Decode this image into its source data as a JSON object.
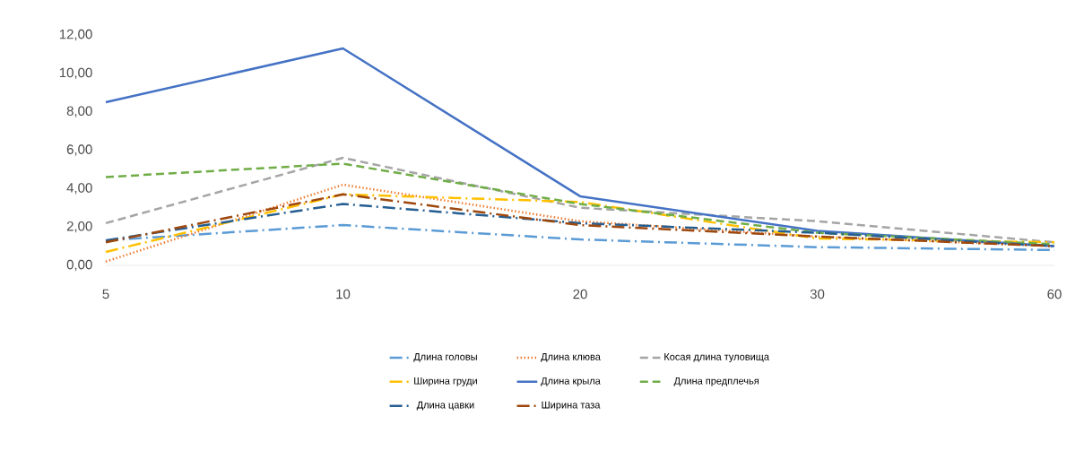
{
  "chart_data": {
    "type": "line",
    "categories": [
      "5",
      "10",
      "20",
      "30",
      "60"
    ],
    "series": [
      {
        "name": "Длина головы",
        "color": "#5b9bd5",
        "line_style": "dashdot",
        "values": [
          1.3,
          2.1,
          1.35,
          0.95,
          0.8
        ]
      },
      {
        "name": "Длина клюва",
        "color": "#ed7d31",
        "line_style": "dotted",
        "values": [
          0.2,
          4.2,
          2.3,
          1.5,
          1.0
        ]
      },
      {
        "name": "Косая длина туловища",
        "color": "#a5a5a5",
        "line_style": "dashed",
        "values": [
          2.2,
          5.6,
          3.0,
          2.3,
          1.2
        ]
      },
      {
        "name": "Ширина груди",
        "color": "#ffc000",
        "line_style": "dashdot",
        "values": [
          0.7,
          3.7,
          3.3,
          1.4,
          1.2
        ]
      },
      {
        "name": "Длина крыла",
        "color": "#4472c4",
        "line_style": "solid",
        "values": [
          8.5,
          11.3,
          3.6,
          1.8,
          1.0
        ]
      },
      {
        "name": "Длина предплечья",
        "color": "#70ad47",
        "line_style": "dashed",
        "values": [
          4.6,
          5.3,
          3.2,
          1.7,
          1.1
        ]
      },
      {
        "name": "Длина цавки",
        "color": "#255e91",
        "line_style": "dashdot",
        "values": [
          1.3,
          3.2,
          2.2,
          1.7,
          1.0
        ]
      },
      {
        "name": "Ширина таза",
        "color": "#9e480e",
        "line_style": "dashdot",
        "values": [
          1.2,
          3.7,
          2.1,
          1.5,
          1.0
        ]
      }
    ],
    "ylim": [
      0,
      12
    ],
    "yticks": [
      {
        "value": 0,
        "label": "0,00"
      },
      {
        "value": 2,
        "label": "2,00"
      },
      {
        "value": 4,
        "label": "4,00"
      },
      {
        "value": 6,
        "label": "6,00"
      },
      {
        "value": 8,
        "label": "8,00"
      },
      {
        "value": 10,
        "label": "10,00"
      },
      {
        "value": 12,
        "label": "12,00"
      }
    ],
    "grid": false,
    "legend": "bottom",
    "marker": "none"
  }
}
